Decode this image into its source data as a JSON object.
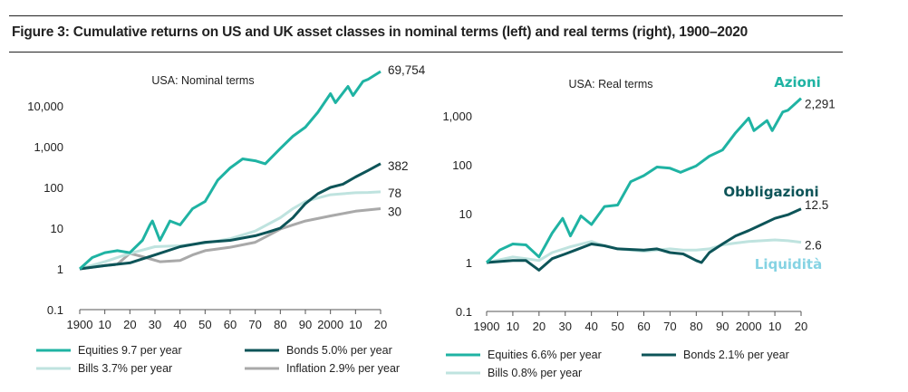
{
  "figure_title": "Figure 3: Cumulative returns on US and UK asset classes in nominal terms (left) and real terms (right), 1900–2020",
  "colors": {
    "equities": "#1fb3a3",
    "bonds": "#0d5458",
    "bills": "#bfe3df",
    "inflation": "#a9a9a9",
    "annot_equities": "#1fb3a3",
    "annot_bonds": "#0d5458",
    "annot_bills": "#86d3e3"
  },
  "chart_data": [
    {
      "type": "line",
      "title": "USA: Nominal terms",
      "xlabel": "",
      "ylabel": "",
      "y_scale": "log",
      "ylim": [
        0.1,
        100000
      ],
      "xlim": [
        1900,
        2020
      ],
      "y_ticks": [
        0.1,
        1,
        10,
        100,
        1000,
        10000
      ],
      "y_tick_labels": [
        "0.1",
        "1",
        "10",
        "100",
        "1,000",
        "10,000"
      ],
      "x_ticks": [
        1900,
        1910,
        1920,
        1930,
        1940,
        1950,
        1960,
        1970,
        1980,
        1990,
        2000,
        2010,
        2020
      ],
      "x_tick_labels": [
        "1900",
        "10",
        "20",
        "30",
        "40",
        "50",
        "60",
        "70",
        "80",
        "90",
        "2000",
        "10",
        "20"
      ],
      "grid": false,
      "legend_position": "bottom",
      "series": [
        {
          "name": "Equities  9.7 per year",
          "key": "equities",
          "end_label": "69,754",
          "x": [
            1900,
            1905,
            1910,
            1915,
            1920,
            1925,
            1928,
            1929,
            1932,
            1936,
            1940,
            1945,
            1950,
            1955,
            1960,
            1965,
            1970,
            1974,
            1980,
            1985,
            1990,
            1995,
            2000,
            2002,
            2007,
            2009,
            2013,
            2015,
            2020
          ],
          "y": [
            1,
            1.9,
            2.5,
            2.8,
            2.5,
            5,
            12,
            15,
            5,
            15,
            12,
            30,
            45,
            150,
            300,
            500,
            450,
            380,
            900,
            1800,
            3000,
            7000,
            20000,
            12000,
            30000,
            18000,
            40000,
            45000,
            69754
          ]
        },
        {
          "name": "Bonds  5.0% per year",
          "key": "bonds",
          "end_label": "382",
          "x": [
            1900,
            1910,
            1920,
            1930,
            1940,
            1950,
            1960,
            1970,
            1975,
            1980,
            1985,
            1990,
            1995,
            2000,
            2005,
            2010,
            2015,
            2020
          ],
          "y": [
            1,
            1.2,
            1.4,
            2.2,
            3.5,
            4.5,
            5,
            6.5,
            8,
            10,
            18,
            40,
            70,
            100,
            120,
            180,
            260,
            382
          ]
        },
        {
          "name": "Bills  3.7% per year",
          "key": "bills",
          "end_label": "78",
          "x": [
            1900,
            1910,
            1920,
            1930,
            1940,
            1950,
            1960,
            1970,
            1980,
            1985,
            1990,
            1995,
            2000,
            2005,
            2010,
            2015,
            2020
          ],
          "y": [
            1,
            1.5,
            2.4,
            3.5,
            3.7,
            4.3,
            5.5,
            8.5,
            18,
            30,
            45,
            55,
            66,
            70,
            74,
            75,
            78
          ]
        },
        {
          "name": "Inflation  2.9% per year",
          "key": "inflation",
          "end_label": "30",
          "x": [
            1900,
            1910,
            1915,
            1920,
            1925,
            1932,
            1940,
            1945,
            1950,
            1960,
            1970,
            1975,
            1980,
            1985,
            1990,
            2000,
            2010,
            2020
          ],
          "y": [
            1,
            1.2,
            1.3,
            2.4,
            2,
            1.5,
            1.6,
            2.2,
            2.8,
            3.4,
            4.5,
            6.5,
            9.5,
            12,
            15,
            20,
            26,
            30
          ]
        }
      ]
    },
    {
      "type": "line",
      "title": "USA: Real terms",
      "xlabel": "",
      "ylabel": "",
      "y_scale": "log",
      "ylim": [
        0.1,
        10000
      ],
      "xlim": [
        1900,
        2020
      ],
      "y_ticks": [
        0.1,
        1,
        10,
        100,
        1000
      ],
      "y_tick_labels": [
        "0.1",
        "1",
        "10",
        "100",
        "1,000"
      ],
      "x_ticks": [
        1900,
        1910,
        1920,
        1930,
        1940,
        1950,
        1960,
        1970,
        1980,
        1990,
        2000,
        2010,
        2020
      ],
      "x_tick_labels": [
        "1900",
        "10",
        "20",
        "30",
        "40",
        "50",
        "60",
        "70",
        "80",
        "90",
        "2000",
        "10",
        "20"
      ],
      "grid": false,
      "legend_position": "bottom",
      "series": [
        {
          "name": "Equities  6.6% per year",
          "key": "equities",
          "end_label": "2,291",
          "x": [
            1900,
            1905,
            1910,
            1915,
            1920,
            1925,
            1929,
            1932,
            1936,
            1940,
            1945,
            1950,
            1955,
            1960,
            1965,
            1970,
            1974,
            1980,
            1985,
            1990,
            1995,
            2000,
            2002,
            2007,
            2009,
            2013,
            2015,
            2020
          ],
          "y": [
            1,
            1.8,
            2.4,
            2.3,
            1.3,
            4,
            8,
            3.5,
            9,
            6,
            14,
            15,
            45,
            60,
            90,
            85,
            70,
            95,
            150,
            200,
            450,
            900,
            500,
            800,
            500,
            1200,
            1300,
            2291
          ]
        },
        {
          "name": "Bonds 2.1% per year",
          "key": "bonds",
          "end_label": "12.5",
          "x": [
            1900,
            1910,
            1915,
            1920,
            1925,
            1930,
            1940,
            1945,
            1950,
            1960,
            1965,
            1970,
            1975,
            1980,
            1982,
            1985,
            1990,
            1995,
            2000,
            2005,
            2010,
            2015,
            2020
          ],
          "y": [
            1,
            1.1,
            1.1,
            0.7,
            1.2,
            1.5,
            2.4,
            2.2,
            1.9,
            1.8,
            1.9,
            1.6,
            1.5,
            1.1,
            1,
            1.6,
            2.4,
            3.5,
            4.5,
            6,
            8,
            9.5,
            12.5
          ]
        },
        {
          "name": "Bills 0.8% per year",
          "key": "bills",
          "end_label": "2.6",
          "x": [
            1900,
            1910,
            1915,
            1920,
            1925,
            1932,
            1940,
            1945,
            1950,
            1960,
            1970,
            1975,
            1980,
            1985,
            1990,
            1995,
            2000,
            2005,
            2010,
            2015,
            2020
          ],
          "y": [
            1,
            1.3,
            1.2,
            1.1,
            1.6,
            2.1,
            2.7,
            2.2,
            1.9,
            1.7,
            1.9,
            1.8,
            1.8,
            1.9,
            2.3,
            2.5,
            2.7,
            2.8,
            2.9,
            2.8,
            2.6
          ]
        }
      ],
      "annotations": [
        {
          "text": "Azioni",
          "key": "annot_equities"
        },
        {
          "text": "Obbligazioni",
          "key": "annot_bonds"
        },
        {
          "text": "Liquidità",
          "key": "annot_bills"
        }
      ]
    }
  ]
}
